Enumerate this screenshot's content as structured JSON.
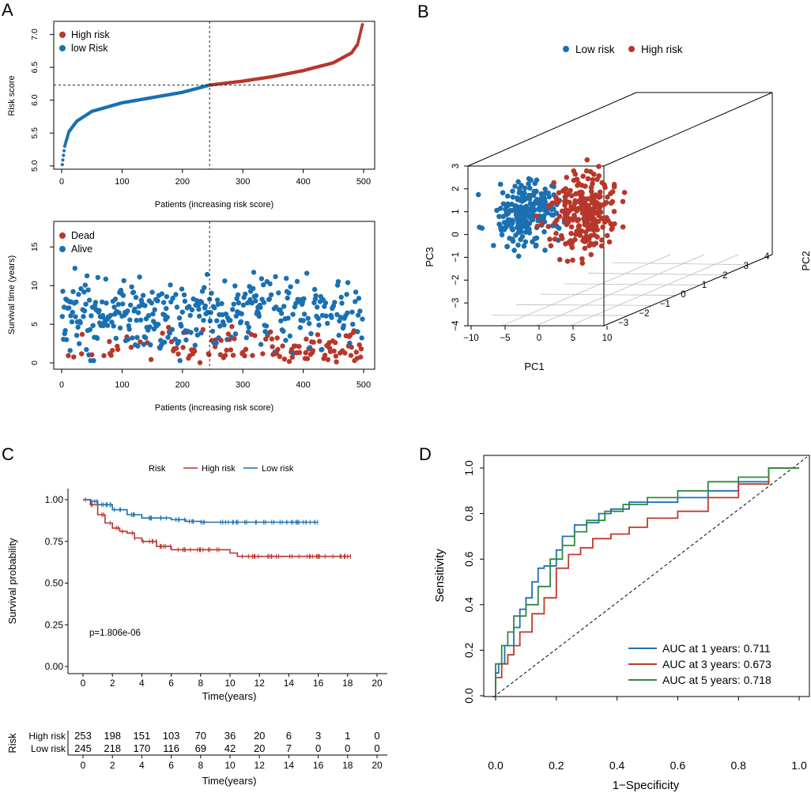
{
  "colors": {
    "high": "#b8372b",
    "low": "#1a70b1",
    "auc1": "#1f6fb5",
    "auc3": "#c0392b",
    "auc5": "#2e8b3e",
    "grid": "#bbbbbb"
  },
  "panels": {
    "a": "A",
    "b": "B",
    "c": "C",
    "d": "D"
  },
  "chart_data": [
    {
      "id": "risk_score",
      "type": "scatter",
      "ylabel": "Risk score",
      "xlabel": "Patients (increasing risk score)",
      "xlim": [
        0,
        500
      ],
      "ylim": [
        4.95,
        7.2
      ],
      "xticks": [
        0,
        100,
        200,
        300,
        400,
        500
      ],
      "yticks": [
        5.0,
        5.5,
        6.0,
        6.5,
        7.0
      ],
      "ytick_labels": [
        "5.0",
        "5.5",
        "6.0",
        "6.5",
        "7.0"
      ],
      "cutoff_x": 245,
      "cutoff_y": 6.23,
      "n_low": 245,
      "n_high": 253,
      "curve_samples": [
        [
          1,
          5.02
        ],
        [
          5,
          5.3
        ],
        [
          12,
          5.52
        ],
        [
          25,
          5.68
        ],
        [
          50,
          5.83
        ],
        [
          100,
          5.96
        ],
        [
          150,
          6.04
        ],
        [
          200,
          6.12
        ],
        [
          245,
          6.23
        ],
        [
          300,
          6.29
        ],
        [
          350,
          6.36
        ],
        [
          400,
          6.45
        ],
        [
          450,
          6.57
        ],
        [
          480,
          6.72
        ],
        [
          490,
          6.85
        ],
        [
          498,
          7.15
        ]
      ],
      "legend": [
        "High risk",
        "low Risk"
      ]
    },
    {
      "id": "survival_time",
      "type": "scatter",
      "ylabel": "Survival time (years)",
      "xlabel": "Patients (increasing risk score)",
      "xlim": [
        0,
        500
      ],
      "ylim": [
        0,
        18.5
      ],
      "xticks": [
        0,
        100,
        200,
        300,
        400,
        500
      ],
      "yticks": [
        0,
        5,
        10,
        15
      ],
      "cutoff_x": 245,
      "legend": [
        "Dead",
        "Alive"
      ]
    },
    {
      "id": "pca3d",
      "type": "scatter",
      "xlabel": "PC1",
      "ylabel": "PC3",
      "zlabel": "PC2",
      "pc1_ticks": [
        "−10",
        "−5",
        "0",
        "5",
        "10"
      ],
      "pc2_ticks": [
        "−3",
        "−2",
        "−1",
        "0",
        "1",
        "2",
        "3",
        "4"
      ],
      "pc3_ticks": [
        "−4",
        "−3",
        "−2",
        "−1",
        "0",
        "1",
        "2",
        "3"
      ],
      "legend": [
        "Low risk",
        "High risk"
      ],
      "clusters": [
        {
          "name": "Low risk",
          "center_pc1": -1.5,
          "center_pc3": 0.8
        },
        {
          "name": "High risk",
          "center_pc1": 3.0,
          "center_pc3": 1.0
        }
      ]
    },
    {
      "id": "kaplan_meier",
      "type": "line",
      "legend_title": "Risk",
      "series": [
        {
          "name": "High risk",
          "points": [
            [
              0,
              1.0
            ],
            [
              0.5,
              0.97
            ],
            [
              1,
              0.91
            ],
            [
              1.5,
              0.86
            ],
            [
              2,
              0.83
            ],
            [
              2.5,
              0.81
            ],
            [
              3,
              0.8
            ],
            [
              3.5,
              0.77
            ],
            [
              4,
              0.75
            ],
            [
              5,
              0.72
            ],
            [
              6,
              0.7
            ],
            [
              8,
              0.7
            ],
            [
              10,
              0.68
            ],
            [
              10.5,
              0.66
            ],
            [
              18.2,
              0.66
            ]
          ]
        },
        {
          "name": "Low risk",
          "points": [
            [
              0,
              1.0
            ],
            [
              0.5,
              0.99
            ],
            [
              1,
              0.97
            ],
            [
              2,
              0.94
            ],
            [
              3,
              0.91
            ],
            [
              4,
              0.89
            ],
            [
              6,
              0.88
            ],
            [
              7,
              0.87
            ],
            [
              8,
              0.865
            ],
            [
              16,
              0.865
            ]
          ]
        }
      ],
      "xlabel": "Time(years)",
      "ylabel": "Survival probability",
      "xticks": [
        0,
        2,
        4,
        6,
        8,
        10,
        12,
        14,
        16,
        18,
        20
      ],
      "yticks": [
        0.0,
        0.25,
        0.5,
        0.75,
        1.0
      ],
      "ytick_labels": [
        "0.00",
        "0.25",
        "0.50",
        "0.75",
        "1.00"
      ],
      "annotation": "p=1.806e-06",
      "risk_table": {
        "ylabel": "Risk",
        "rows": [
          {
            "name": "High risk",
            "values": [
              253,
              198,
              151,
              103,
              70,
              36,
              20,
              6,
              3,
              1,
              0
            ]
          },
          {
            "name": "Low risk",
            "values": [
              245,
              218,
              170,
              116,
              69,
              42,
              20,
              7,
              0,
              0,
              0
            ]
          }
        ],
        "xlabel": "Time(years)"
      }
    },
    {
      "id": "roc",
      "type": "line",
      "xlabel": "1−Specificity",
      "ylabel": "Sensitivity",
      "xticks": [
        0.0,
        0.2,
        0.4,
        0.6,
        0.8,
        1.0
      ],
      "yticks": [
        0.0,
        0.2,
        0.4,
        0.6,
        0.8,
        1.0
      ],
      "tick_labels": [
        "0.0",
        "0.2",
        "0.4",
        "0.6",
        "0.8",
        "1.0"
      ],
      "series": [
        {
          "name": "AUC at 1 years: 0.711",
          "points": [
            [
              0,
              0
            ],
            [
              0.01,
              0.1
            ],
            [
              0.03,
              0.14
            ],
            [
              0.06,
              0.22
            ],
            [
              0.08,
              0.3
            ],
            [
              0.1,
              0.38
            ],
            [
              0.12,
              0.43
            ],
            [
              0.14,
              0.5
            ],
            [
              0.16,
              0.56
            ],
            [
              0.2,
              0.57
            ],
            [
              0.22,
              0.64
            ],
            [
              0.26,
              0.7
            ],
            [
              0.3,
              0.75
            ],
            [
              0.34,
              0.76
            ],
            [
              0.38,
              0.8
            ],
            [
              0.44,
              0.82
            ],
            [
              0.5,
              0.85
            ],
            [
              0.6,
              0.85
            ],
            [
              0.7,
              0.87
            ],
            [
              0.8,
              0.9
            ],
            [
              0.9,
              0.94
            ],
            [
              0.97,
              1.0
            ],
            [
              1,
              1
            ]
          ]
        },
        {
          "name": "AUC at 3 years: 0.673",
          "points": [
            [
              0,
              0
            ],
            [
              0.02,
              0.08
            ],
            [
              0.04,
              0.14
            ],
            [
              0.06,
              0.18
            ],
            [
              0.08,
              0.22
            ],
            [
              0.12,
              0.28
            ],
            [
              0.16,
              0.36
            ],
            [
              0.2,
              0.43
            ],
            [
              0.24,
              0.56
            ],
            [
              0.28,
              0.62
            ],
            [
              0.32,
              0.65
            ],
            [
              0.38,
              0.69
            ],
            [
              0.44,
              0.71
            ],
            [
              0.5,
              0.74
            ],
            [
              0.6,
              0.78
            ],
            [
              0.7,
              0.81
            ],
            [
              0.8,
              0.87
            ],
            [
              0.9,
              0.93
            ],
            [
              1,
              1
            ]
          ]
        },
        {
          "name": "AUC at 5 years: 0.718",
          "points": [
            [
              0,
              0
            ],
            [
              0.02,
              0.14
            ],
            [
              0.04,
              0.22
            ],
            [
              0.06,
              0.28
            ],
            [
              0.1,
              0.35
            ],
            [
              0.14,
              0.4
            ],
            [
              0.18,
              0.48
            ],
            [
              0.22,
              0.6
            ],
            [
              0.26,
              0.66
            ],
            [
              0.3,
              0.72
            ],
            [
              0.36,
              0.77
            ],
            [
              0.42,
              0.81
            ],
            [
              0.5,
              0.84
            ],
            [
              0.6,
              0.87
            ],
            [
              0.7,
              0.9
            ],
            [
              0.8,
              0.94
            ],
            [
              0.9,
              0.96
            ],
            [
              1,
              1
            ]
          ]
        }
      ]
    }
  ]
}
